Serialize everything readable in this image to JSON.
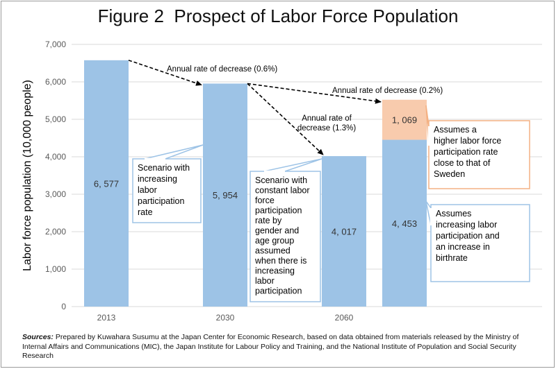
{
  "title": "Figure 2  Prospect of Labor Force Population",
  "chart_data": {
    "type": "bar",
    "ylabel": "Labor force population (10,000 people)",
    "ylim": [
      0,
      7000
    ],
    "yticks": [
      "0",
      "1,000",
      "2,000",
      "3,000",
      "4,000",
      "5,000",
      "6,000",
      "7,000"
    ],
    "grid": true,
    "bars": [
      {
        "category": "2013",
        "base": 6577,
        "base_label": "6, 577"
      },
      {
        "category": "2030",
        "base": 5954,
        "base_label": "5, 954"
      },
      {
        "category": "2060",
        "base": 4017,
        "base_label": "4, 017"
      },
      {
        "category": "",
        "base": 4453,
        "base_label": "4, 453",
        "extra": 1069,
        "extra_label": "1, 069"
      }
    ],
    "arrows": [
      {
        "label": "Annual rate of decrease (0.6%)"
      },
      {
        "label": "Annual rate of decrease (0.2%)"
      },
      {
        "label": "Annual rate of\ndecrease (1.3%)"
      }
    ],
    "callouts": [
      {
        "text": "Scenario with\nincreasing\nlabor\nparticipation\nrate"
      },
      {
        "text": "Scenario with\nconstant labor\nforce\nparticipation\nrate by\ngender and\nage group\nassumed\nwhen there is\nincreasing\nlabor\nparticipation"
      },
      {
        "text": "Assumes a\nhigher labor force\nparticipation rate\nclose to that of\nSweden"
      },
      {
        "text": "Assumes\nincreasing labor\nparticipation and\nan increase in\nbirthrate"
      }
    ],
    "colors": {
      "base": "#9dc3e6",
      "extra": "#f8cbad",
      "grid": "#d9d9d9",
      "arrow": "#000000",
      "callout_blue": "#9dc3e6",
      "callout_orange": "#f4b183"
    }
  },
  "sources": {
    "label": "Sources:",
    "text": " Prepared by Kuwahara Susumu at the Japan Center for Economic Research, based on data obtained from materials released by the Ministry of Internal Affairs and Communications (MIC), the Japan Institute for Labour Policy and Training, and the National Institute of Population and Social Security Research"
  }
}
